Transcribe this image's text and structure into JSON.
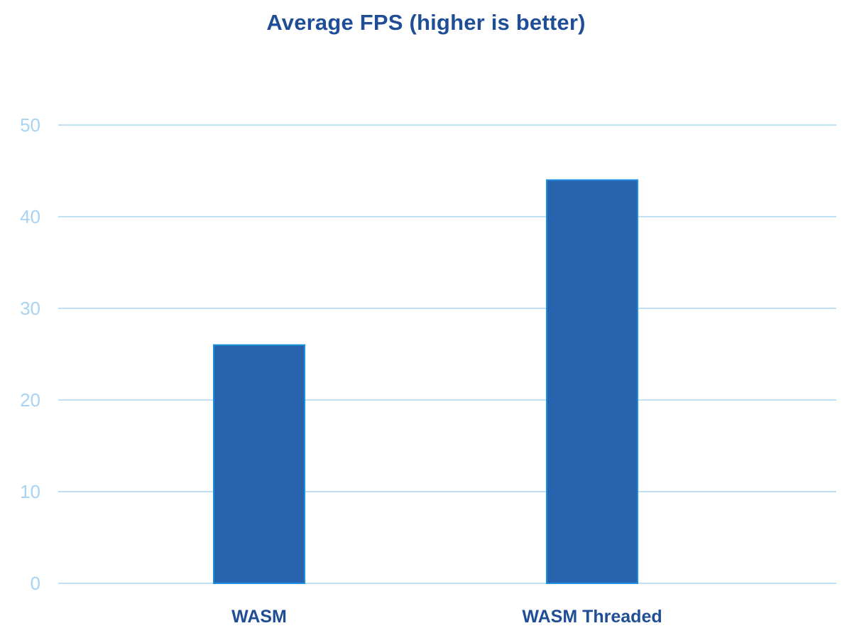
{
  "chart_data": {
    "type": "bar",
    "title": "Average FPS (higher is better)",
    "categories": [
      "WASM",
      "WASM Threaded"
    ],
    "values": [
      26,
      44
    ],
    "xlabel": "",
    "ylabel": "",
    "ylim": [
      0,
      50
    ],
    "yticks": [
      0,
      10,
      20,
      30,
      40,
      50
    ],
    "grid": true,
    "legend": "none",
    "colors": {
      "bar": "#2862ad",
      "bar_edge": "#1b8fe0",
      "grid": "#bfe0f5",
      "tick_text": "#a9d3f2",
      "title_text": "#1f4e96",
      "category_text": "#1f4e96"
    }
  }
}
